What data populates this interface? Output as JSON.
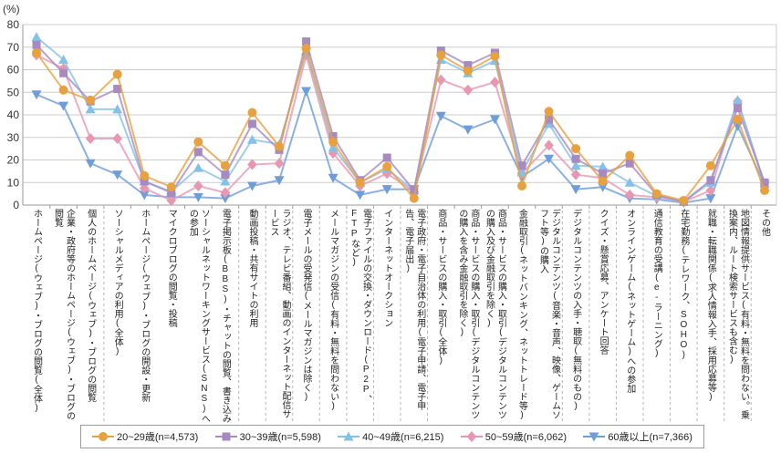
{
  "chart_data": {
    "type": "line",
    "title": "",
    "ylabel": "(%)",
    "xlabel": "",
    "ylim": [
      0,
      80
    ],
    "ytick_step": 10,
    "grid": true,
    "legend_position": "bottom",
    "categories": [
      "ホームページ(ウェブ)・ブログの閲覧(全体)",
      "企業・政府等のホームページ(ウェブ)・ブログの閲覧",
      "個人のホームページ(ウェブ)・ブログの閲覧",
      "ソーシャルメディアの利用(全体)",
      "ホームページ(ウェブ)・ブログの開設・更新",
      "マイクロブログの閲覧・投稿",
      "ソーシャルネットワーキングサービス(SNS)への参加",
      "電子掲示板(BBS)・チャットの閲覧、書き込み",
      "動画投稿・共有サイトの利用",
      "ラジオ、テレビ番組、動画のインターネット配信サービス",
      "電子メールの受発信(メールマガジンは除く)",
      "メールマガジンの受信(有料・無料を問わない)",
      "電子ファイルの交換・ダウンロード(P2P、FTPなど)",
      "インターネットオークション",
      "電子政府・電子自治体の利用(電子申請、電子申告、電子届出)",
      "商品・サービスの購入・取引(全体)",
      "商品・サービスの購入・取引(デジタルコンテンツの購入を含み金融取引を除く)",
      "商品・サービスの購入・取引(デジタルコンテンツの購入及び金融取引を除く)",
      "金融取引(ネットバンキング、ネットトレード等)",
      "デジタルコンテンツ(音楽・音声、映像、ゲームソフト等)の購入",
      "デジタルコンテンツの入手・聴取(無料のもの)",
      "クイズ・懸賞応募、アンケート回答",
      "オンラインゲーム(ネットゲーム)への参加",
      "通信教育の受講(e-ラーニング)",
      "在宅勤務(テレワーク、SOHO)",
      "就職・転職関係(求人情報入手、採用応募等)",
      "地図情報提供サービス(有料・無料を問わない。乗換案内、ルート検索サービスも含む)",
      "その他"
    ],
    "series": [
      {
        "name": "20~29歳(n=4,573)",
        "marker": "circle",
        "color": "#E7A13E",
        "values": [
          67.5,
          51,
          46.5,
          58,
          13,
          8,
          28,
          17.5,
          41,
          26,
          69.5,
          28,
          10,
          17,
          3,
          66.5,
          59.5,
          66,
          8.5,
          41.5,
          25,
          10.5,
          22,
          5,
          2,
          17.5,
          38,
          6.5
        ]
      },
      {
        "name": "30~39歳(n=5,598)",
        "marker": "square",
        "color": "#A78BC0",
        "values": [
          71,
          58.5,
          46,
          51.5,
          10.5,
          5.5,
          23.5,
          13.5,
          36,
          24.5,
          72.5,
          30.5,
          11,
          21,
          6.5,
          68.5,
          62,
          67.5,
          17.5,
          38,
          20.5,
          14,
          18.5,
          4.5,
          1.5,
          11,
          43,
          10
        ]
      },
      {
        "name": "40~49歳(n=6,215)",
        "marker": "triangle-up",
        "color": "#84C1E8",
        "values": [
          74.5,
          64.5,
          42.5,
          42.5,
          10.5,
          6,
          16.5,
          10.5,
          29,
          27,
          68.5,
          25.5,
          10,
          16,
          6.5,
          64.5,
          58.5,
          64,
          14.5,
          36,
          17.5,
          17,
          10,
          4,
          1.5,
          10,
          46.5,
          9.5
        ]
      },
      {
        "name": "50~59歳(n=6,062)",
        "marker": "diamond",
        "color": "#E897B2",
        "values": [
          66.5,
          60.5,
          29.5,
          29.5,
          7.5,
          2,
          8.5,
          5.5,
          18,
          18.5,
          66.5,
          23,
          8.5,
          14,
          6,
          55.5,
          51,
          54.5,
          14,
          26.5,
          13.5,
          12,
          4.5,
          3.5,
          1.5,
          6.5,
          46,
          9.5
        ]
      },
      {
        "name": "60歳以上(n=7,366)",
        "marker": "triangle-down",
        "color": "#6D9ED9",
        "values": [
          49,
          44,
          18.5,
          13.5,
          4.5,
          3.5,
          3.5,
          3,
          8.5,
          11,
          50.5,
          12,
          4.5,
          7,
          7,
          39.5,
          33.5,
          38,
          12.5,
          20.5,
          7,
          8,
          3,
          2.5,
          1,
          3,
          35,
          9
        ]
      }
    ],
    "group_separators_after": [
      3,
      8,
      9,
      10,
      11,
      12,
      13,
      14,
      15,
      20,
      21,
      22,
      23,
      24,
      25,
      26,
      27
    ],
    "colors": {
      "grid": "#cccccc",
      "axis": "#999999",
      "text": "#222222"
    }
  }
}
